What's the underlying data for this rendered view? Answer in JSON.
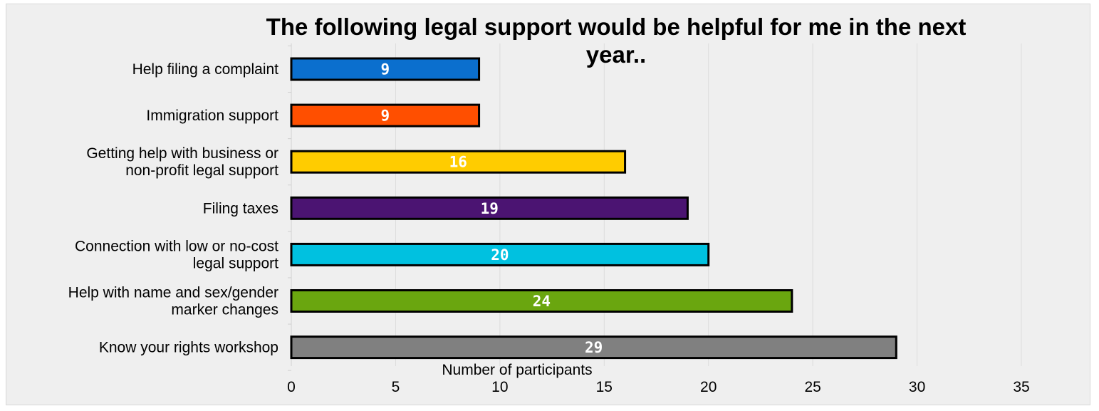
{
  "chart_data": {
    "type": "bar",
    "orientation": "horizontal",
    "title": "The following  legal support would be helpful for me in the next year..",
    "title_lines": [
      "The following  legal support would be helpful for me in the next",
      "year.."
    ],
    "xlabel": "Number of participants",
    "ylabel": "",
    "xlim": [
      0,
      35
    ],
    "xticks": [
      0,
      5,
      10,
      15,
      20,
      25,
      30,
      35
    ],
    "xtick_labels": [
      "0",
      "5",
      "10",
      "15",
      "20",
      "25",
      "30",
      "35"
    ],
    "grid": true,
    "legend": "none",
    "categories": [
      [
        "Help filing a complaint"
      ],
      [
        "Immigration support"
      ],
      [
        "Getting help with business or",
        "non-profit legal support"
      ],
      [
        "Filing taxes"
      ],
      [
        "Connection with low or no-cost",
        "legal support"
      ],
      [
        "Help with name and sex/gender",
        "marker changes"
      ],
      [
        "Know your rights workshop"
      ]
    ],
    "values": [
      9,
      9,
      16,
      19,
      20,
      24,
      29
    ],
    "data_labels": [
      "9",
      "9",
      "16",
      "19",
      "20",
      "24",
      "29"
    ],
    "colors": [
      "#0b6fce",
      "#ff4f00",
      "#ffcc00",
      "#4b1472",
      "#00c1e0",
      "#6aa60f",
      "#808080"
    ],
    "background_color": "#efefef",
    "gridline_color": "#dcdcdc",
    "bar_outline_color": "#000000"
  }
}
